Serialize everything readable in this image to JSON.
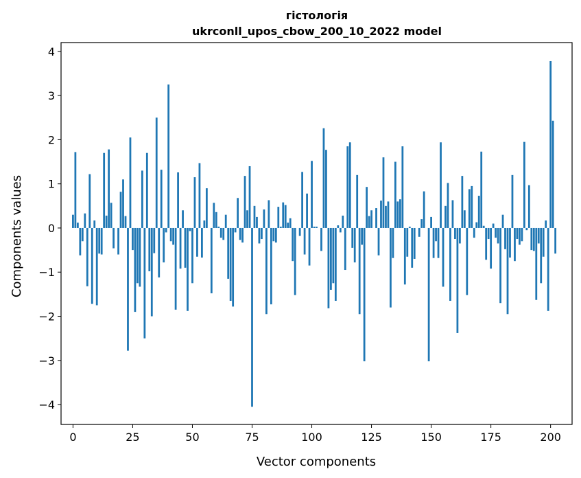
{
  "chart_data": {
    "type": "bar",
    "title": "гістологія",
    "subtitle": "ukrconll_upos_cbow_200_10_2022 model",
    "xlabel": "Vector components",
    "ylabel": "Components values",
    "xlim": [
      -5,
      209
    ],
    "ylim": [
      -4.45,
      4.2
    ],
    "xticks": [
      0,
      25,
      50,
      75,
      100,
      125,
      150,
      175,
      200
    ],
    "yticks": [
      -4,
      -3,
      -2,
      -1,
      0,
      1,
      2,
      3,
      4
    ],
    "ytick_labels": [
      "−4",
      "−3",
      "−2",
      "−1",
      "0",
      "1",
      "2",
      "3",
      "4"
    ],
    "bar_color": "#1f77b4",
    "grid": false,
    "values": [
      0.3,
      1.72,
      0.12,
      -0.62,
      -0.3,
      0.33,
      -1.32,
      1.22,
      -1.72,
      0.17,
      -1.75,
      -0.58,
      -0.6,
      1.7,
      0.28,
      1.78,
      0.57,
      -0.46,
      0.0,
      -0.6,
      0.82,
      1.1,
      0.27,
      -2.78,
      2.05,
      -0.5,
      -1.9,
      -1.25,
      -1.33,
      1.3,
      -2.5,
      1.7,
      -0.98,
      -2.0,
      -0.57,
      2.5,
      -1.12,
      1.32,
      -0.78,
      -0.1,
      3.25,
      -0.3,
      -0.38,
      -1.85,
      1.26,
      -0.92,
      0.4,
      -0.9,
      -1.88,
      -0.07,
      -1.25,
      1.15,
      -0.65,
      1.47,
      -0.67,
      0.17,
      0.9,
      0.0,
      -1.48,
      0.57,
      0.36,
      0.03,
      -0.22,
      -0.27,
      0.3,
      -1.15,
      -1.65,
      -1.78,
      -0.1,
      0.68,
      -0.27,
      -0.33,
      1.18,
      0.4,
      1.4,
      -4.05,
      0.5,
      0.25,
      -0.35,
      -0.25,
      0.42,
      -1.95,
      0.63,
      -1.73,
      -0.3,
      -0.33,
      0.48,
      0.03,
      0.58,
      0.52,
      0.12,
      0.22,
      -0.75,
      -1.52,
      0.0,
      -0.18,
      1.27,
      -0.6,
      0.78,
      -0.85,
      1.52,
      0.03,
      0.03,
      0.0,
      -0.52,
      2.26,
      1.77,
      -1.82,
      -1.4,
      -1.25,
      -1.65,
      0.06,
      -0.1,
      0.28,
      -0.95,
      1.85,
      1.94,
      -0.45,
      -0.78,
      1.2,
      -1.95,
      -0.38,
      -3.02,
      0.93,
      0.27,
      0.4,
      0.0,
      0.45,
      -0.62,
      0.62,
      1.6,
      0.5,
      0.6,
      -1.8,
      -0.68,
      1.5,
      0.6,
      0.65,
      1.85,
      -1.28,
      -0.65,
      0.03,
      -0.9,
      -0.7,
      0.0,
      -0.2,
      0.2,
      0.83,
      0.0,
      -3.02,
      0.25,
      -0.68,
      -0.3,
      -0.68,
      1.94,
      -1.33,
      0.5,
      1.02,
      -1.65,
      0.63,
      -0.25,
      -2.38,
      -0.35,
      1.18,
      0.4,
      -1.52,
      0.88,
      0.95,
      -0.22,
      0.13,
      0.73,
      1.73,
      0.05,
      -0.72,
      -0.25,
      -0.92,
      0.1,
      -0.22,
      -0.35,
      -1.7,
      0.3,
      -0.48,
      -1.95,
      -0.67,
      1.2,
      -0.75,
      -0.25,
      -0.38,
      -0.3,
      1.95,
      -0.05,
      0.97,
      -0.5,
      -0.52,
      -1.63,
      -0.35,
      -1.25,
      -0.65,
      0.17,
      -1.88,
      3.78,
      2.43,
      -0.58
    ]
  }
}
